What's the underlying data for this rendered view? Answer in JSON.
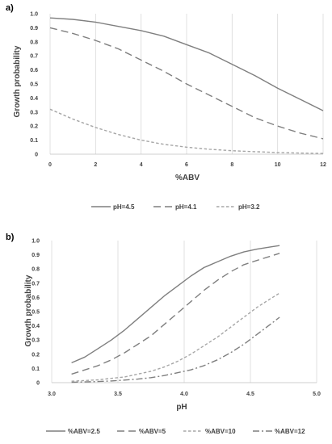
{
  "chart_data": [
    {
      "panel_label": "a)",
      "type": "line",
      "xlabel": "%ABV",
      "ylabel": "Growth probability",
      "xlim": [
        0,
        12
      ],
      "ylim": [
        0,
        1
      ],
      "x_ticks": [
        "0",
        "2",
        "4",
        "6",
        "8",
        "10",
        "12"
      ],
      "y_ticks": [
        "0",
        "0.1",
        "0.2",
        "0.3",
        "0.4",
        "0.5",
        "0.6",
        "0.7",
        "0.8",
        "0.9",
        "1.0"
      ],
      "grid": "vertical",
      "legend": "bottom",
      "x": [
        0,
        1,
        2,
        3,
        4,
        5,
        6,
        7,
        8,
        9,
        10,
        11,
        12
      ],
      "series": [
        {
          "name": "pH=4.5",
          "color": "#7f7f7f",
          "dash": "solid",
          "values": [
            0.97,
            0.96,
            0.94,
            0.91,
            0.88,
            0.84,
            0.78,
            0.72,
            0.64,
            0.56,
            0.47,
            0.39,
            0.31
          ]
        },
        {
          "name": "pH=4.1",
          "color": "#7f7f7f",
          "dash": "dash",
          "values": [
            0.9,
            0.86,
            0.81,
            0.75,
            0.67,
            0.59,
            0.5,
            0.42,
            0.34,
            0.26,
            0.2,
            0.15,
            0.11
          ]
        },
        {
          "name": "pH=3.2",
          "color": "#a6a6a6",
          "dash": "short-dash",
          "values": [
            0.32,
            0.25,
            0.19,
            0.14,
            0.1,
            0.07,
            0.05,
            0.035,
            0.025,
            0.018,
            0.012,
            0.008,
            0.005
          ]
        }
      ]
    },
    {
      "panel_label": "b)",
      "type": "line",
      "xlabel": "pH",
      "ylabel": "Growth probability",
      "xlim": [
        3.0,
        5.0
      ],
      "ylim": [
        0,
        1
      ],
      "x_ticks": [
        "3.0",
        "3.5",
        "4.0",
        "4.5",
        "5.0"
      ],
      "y_ticks": [
        "0",
        "0.1",
        "0.2",
        "0.3",
        "0.4",
        "0.5",
        "0.6",
        "0.7",
        "0.8",
        "0.9",
        "1.0"
      ],
      "grid": "vertical",
      "legend": "bottom",
      "x": [
        3.15,
        3.25,
        3.35,
        3.45,
        3.55,
        3.65,
        3.75,
        3.85,
        3.95,
        4.05,
        4.15,
        4.25,
        4.35,
        4.45,
        4.55,
        4.65,
        4.72
      ],
      "series": [
        {
          "name": "%ABV=2.5",
          "color": "#7f7f7f",
          "dash": "solid",
          "values": [
            0.14,
            0.18,
            0.24,
            0.3,
            0.37,
            0.45,
            0.53,
            0.61,
            0.68,
            0.75,
            0.81,
            0.85,
            0.89,
            0.92,
            0.94,
            0.955,
            0.965
          ]
        },
        {
          "name": "%ABV=5",
          "color": "#7f7f7f",
          "dash": "dash",
          "values": [
            0.06,
            0.09,
            0.12,
            0.16,
            0.21,
            0.27,
            0.33,
            0.41,
            0.49,
            0.57,
            0.65,
            0.72,
            0.78,
            0.83,
            0.86,
            0.89,
            0.91
          ]
        },
        {
          "name": "%ABV=10",
          "color": "#a6a6a6",
          "dash": "short-dash",
          "values": [
            0.01,
            0.015,
            0.02,
            0.03,
            0.04,
            0.06,
            0.08,
            0.11,
            0.15,
            0.2,
            0.26,
            0.32,
            0.39,
            0.46,
            0.53,
            0.59,
            0.63
          ]
        },
        {
          "name": "%ABV=12",
          "color": "#7f7f7f",
          "dash": "dash-dot",
          "values": [
            0.002,
            0.005,
            0.008,
            0.012,
            0.018,
            0.025,
            0.035,
            0.05,
            0.07,
            0.09,
            0.12,
            0.16,
            0.21,
            0.27,
            0.34,
            0.41,
            0.46
          ]
        }
      ]
    }
  ]
}
